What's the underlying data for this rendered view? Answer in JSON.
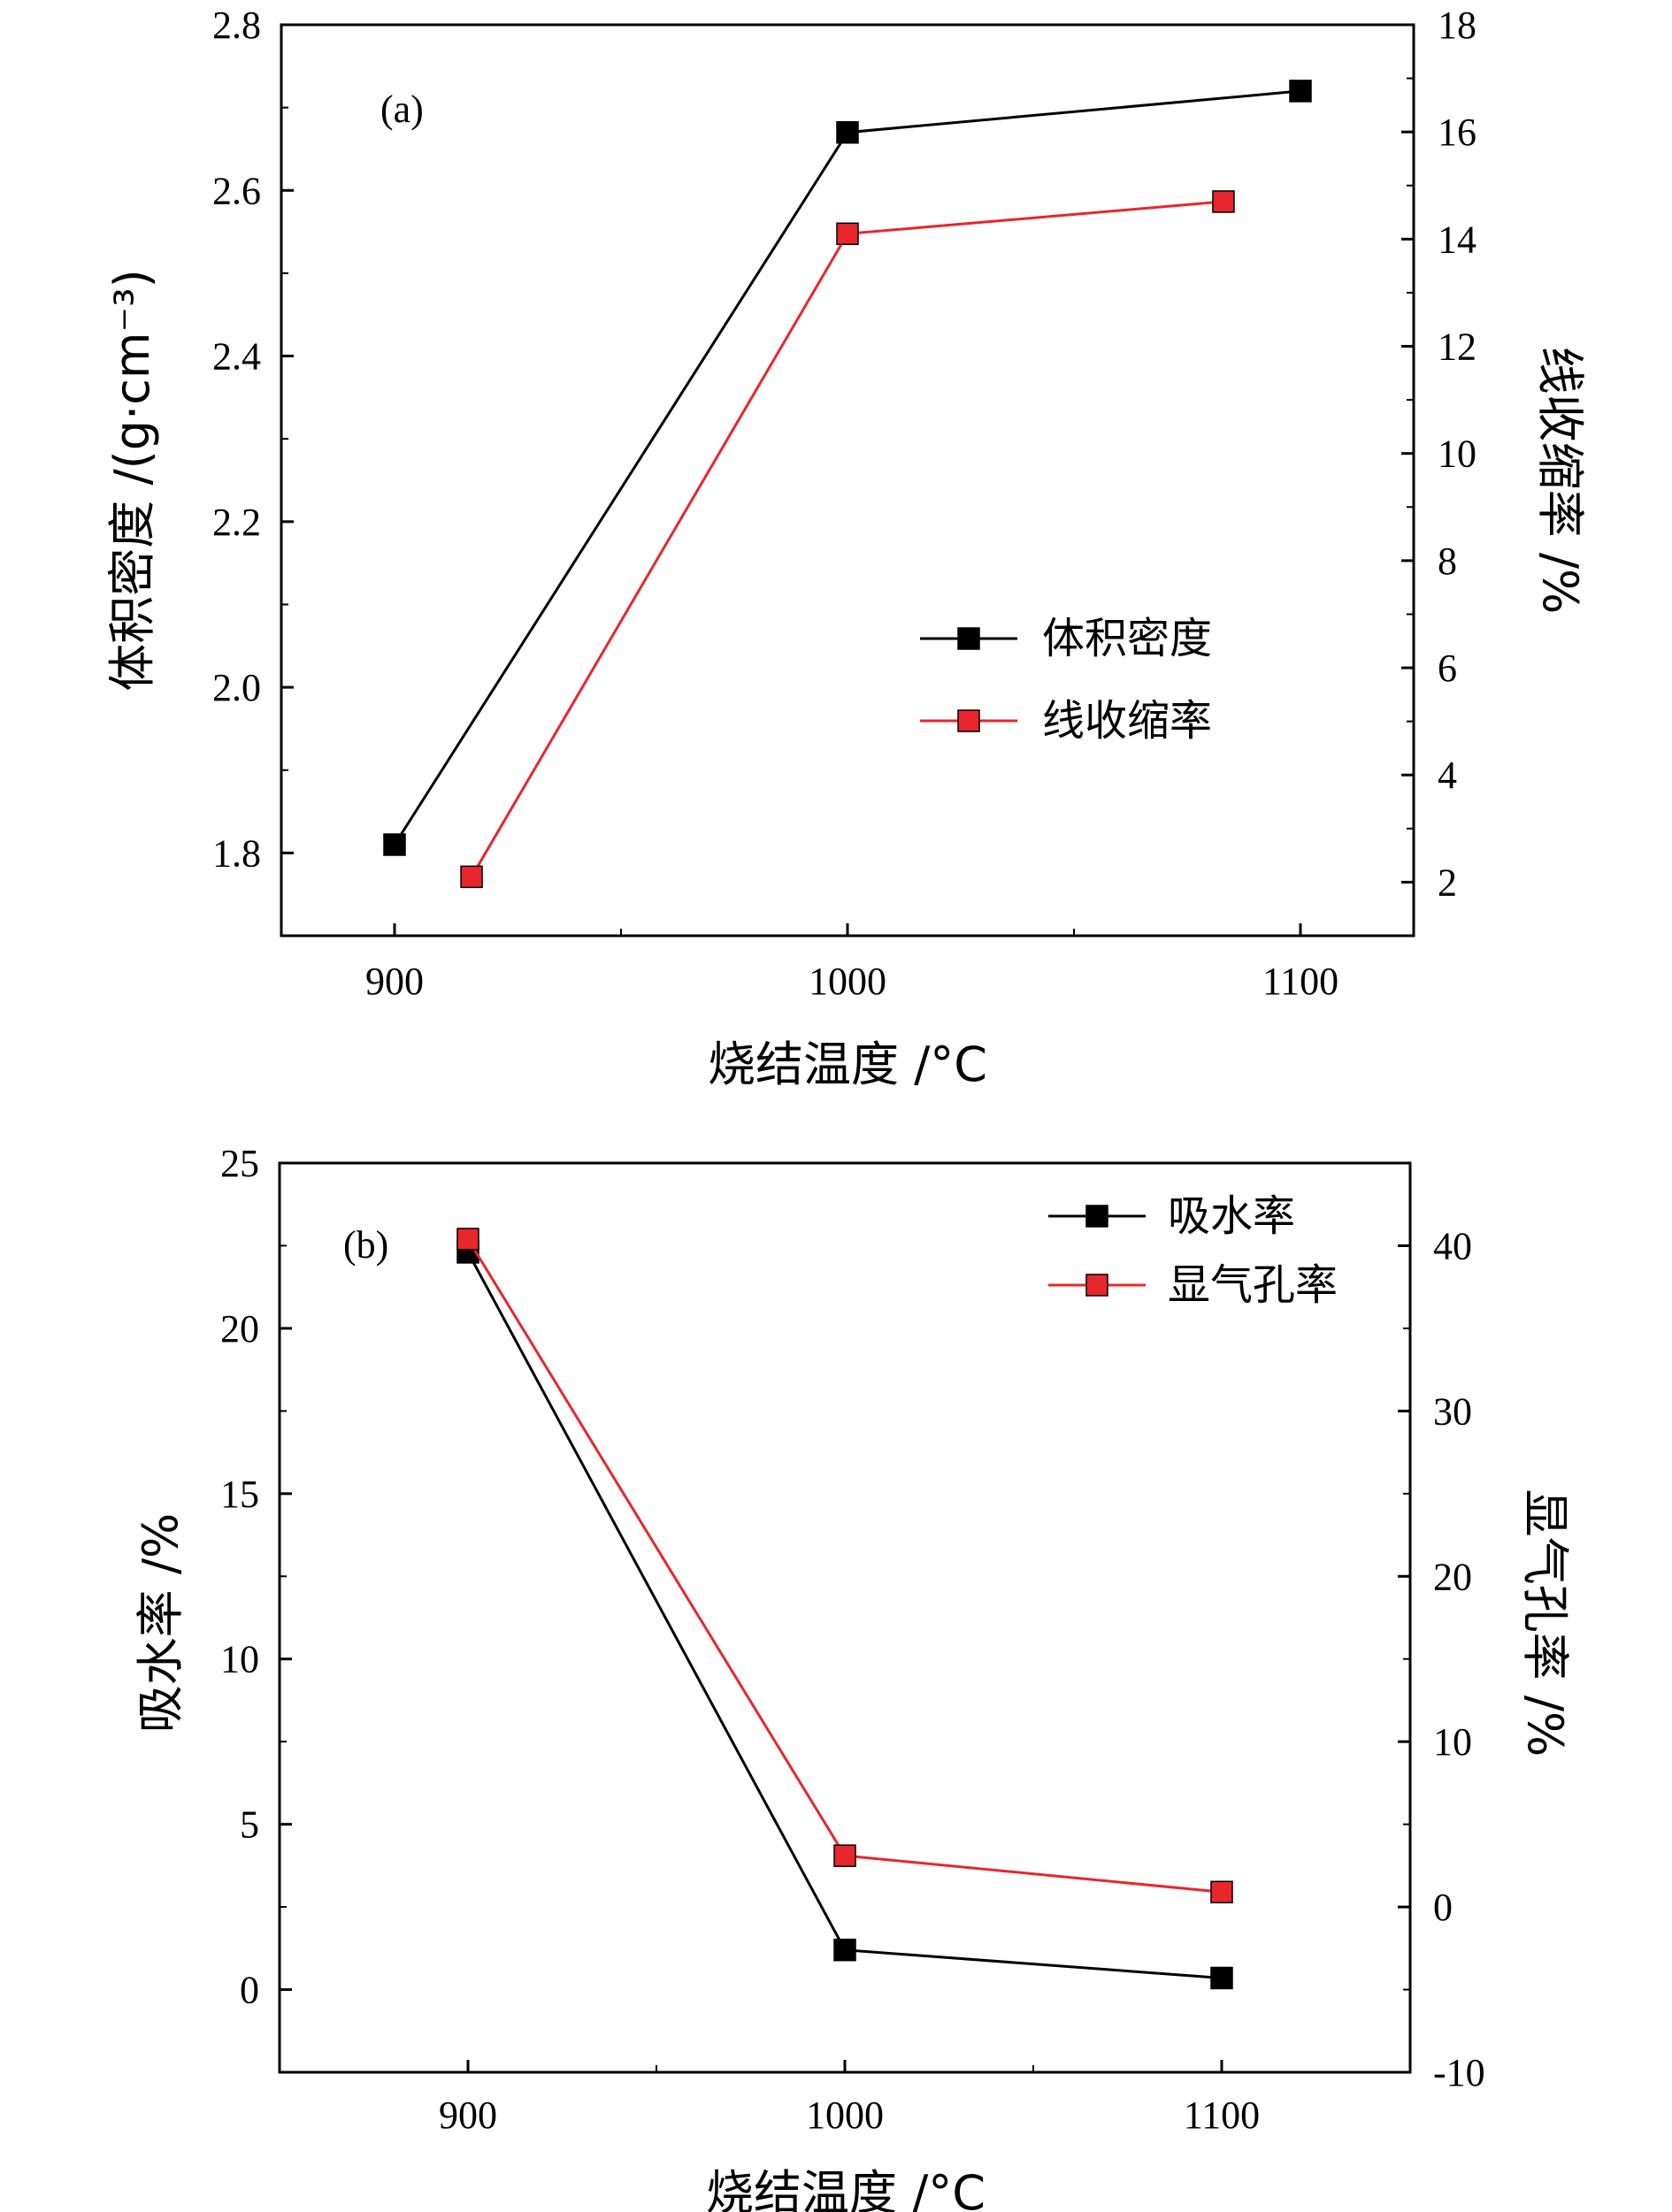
{
  "chart_data": [
    {
      "type": "line",
      "panel_label": "(a)",
      "xlabel": "烧结温度  /°C",
      "ylabel": "体积密度  /(g·cm⁻³)",
      "y2label": "线收缩率  /%",
      "xlim": [
        875,
        1125
      ],
      "ylim": [
        1.7,
        2.8
      ],
      "y2lim": [
        1,
        18
      ],
      "x_ticks": [
        900,
        1000,
        1100
      ],
      "y_ticks": [
        "1.8",
        "2.0",
        "2.2",
        "2.4",
        "2.6",
        "2.8"
      ],
      "y2_ticks": [
        "2",
        "4",
        "6",
        "8",
        "10",
        "12",
        "14",
        "16",
        "18"
      ],
      "grid": false,
      "legend_position": "center-right",
      "series": [
        {
          "name": "体积密度",
          "axis": "left",
          "color": "#000000",
          "x": [
            900,
            1000,
            1100
          ],
          "y": [
            1.81,
            2.67,
            2.72
          ]
        },
        {
          "name": "线收缩率",
          "axis": "right",
          "color": "#e8262c",
          "x": [
            917,
            1000,
            1083
          ],
          "y": [
            2.1,
            14.1,
            14.7
          ]
        }
      ]
    },
    {
      "type": "line",
      "panel_label": "(b)",
      "xlabel": "烧结温度  /°C",
      "ylabel": "吸水率  /%",
      "y2label": "显气孔率  /%",
      "xlim": [
        850,
        1150
      ],
      "ylim": [
        -2.5,
        25
      ],
      "y2lim": [
        -10,
        45
      ],
      "x_ticks": [
        900,
        1000,
        1100
      ],
      "y_ticks": [
        "0",
        "5",
        "10",
        "15",
        "20",
        "25"
      ],
      "y2_ticks": [
        "-10",
        "0",
        "10",
        "20",
        "30",
        "40"
      ],
      "grid": false,
      "legend_position": "top-right",
      "series": [
        {
          "name": "吸水率",
          "axis": "left",
          "color": "#000000",
          "x": [
            900,
            1000,
            1100
          ],
          "y": [
            22.3,
            1.2,
            0.35
          ]
        },
        {
          "name": "显气孔率",
          "axis": "right",
          "color": "#e8262c",
          "x": [
            900,
            1000,
            1100
          ],
          "y": [
            40.4,
            3.1,
            0.9
          ]
        }
      ]
    }
  ]
}
